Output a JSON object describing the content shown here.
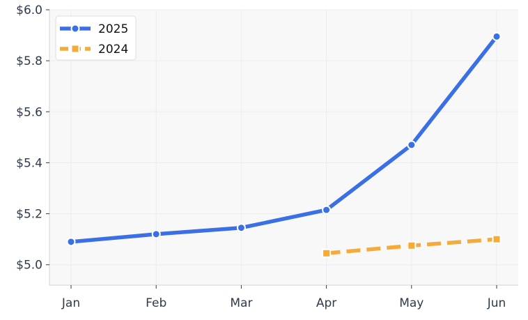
{
  "chart_data": {
    "type": "line",
    "categories": [
      "Jan",
      "Feb",
      "Mar",
      "Apr",
      "May",
      "Jun"
    ],
    "ylim": [
      4.92,
      6.0
    ],
    "yticks": [
      5.0,
      5.2,
      5.4,
      5.6,
      5.8,
      6.0
    ],
    "ytick_labels": [
      "$5.0",
      "$5.2",
      "$5.4",
      "$5.6",
      "$5.8",
      "$6.0"
    ],
    "grid": true,
    "legend_position": "top-left",
    "series": [
      {
        "name": "2025",
        "color": "#3b6fe6",
        "line_style": "solid",
        "marker": "circle",
        "values": [
          5.09,
          5.12,
          5.145,
          5.215,
          5.47,
          5.895
        ]
      },
      {
        "name": "2024",
        "color": "#f4ab3a",
        "line_style": "dashed",
        "marker": "square",
        "values": [
          null,
          null,
          null,
          5.045,
          5.075,
          5.1
        ]
      }
    ]
  }
}
